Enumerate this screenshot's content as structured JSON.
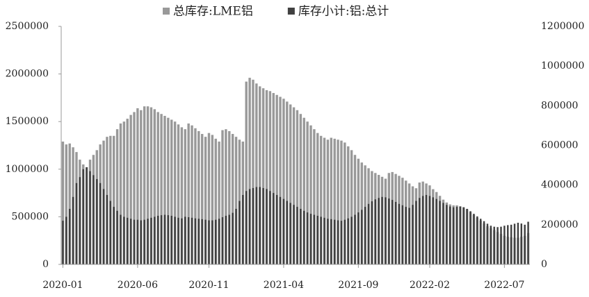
{
  "chart_data": {
    "type": "bar",
    "categories": [
      "2020-01",
      null,
      null,
      null,
      null,
      null,
      null,
      null,
      null,
      null,
      null,
      null,
      null,
      null,
      null,
      null,
      null,
      null,
      null,
      null,
      null,
      null,
      "2020-06",
      null,
      null,
      null,
      null,
      null,
      null,
      null,
      null,
      null,
      null,
      null,
      null,
      null,
      null,
      null,
      null,
      null,
      null,
      null,
      null,
      "2020-11",
      null,
      null,
      null,
      null,
      null,
      null,
      null,
      null,
      null,
      null,
      null,
      null,
      null,
      null,
      null,
      null,
      null,
      null,
      null,
      null,
      null,
      "2021-04",
      null,
      null,
      null,
      null,
      null,
      null,
      null,
      null,
      null,
      null,
      null,
      null,
      null,
      null,
      null,
      null,
      null,
      null,
      null,
      null,
      null,
      "2021-09",
      null,
      null,
      null,
      null,
      null,
      null,
      null,
      null,
      null,
      null,
      null,
      null,
      null,
      null,
      null,
      null,
      null,
      null,
      null,
      null,
      "2022-02",
      null,
      null,
      null,
      null,
      null,
      null,
      null,
      null,
      null,
      null,
      null,
      null,
      null,
      null,
      null,
      null,
      null,
      null,
      null,
      null,
      null,
      "2022-07",
      null,
      null,
      null,
      null,
      null,
      null,
      null
    ],
    "series": [
      {
        "name": "总库存:LME铝",
        "color": "#999999",
        "values": [
          1290000,
          1260000,
          1270000,
          1230000,
          1180000,
          1100000,
          1050000,
          1020000,
          1100000,
          1150000,
          1200000,
          1260000,
          1300000,
          1340000,
          1350000,
          1350000,
          1420000,
          1480000,
          1500000,
          1530000,
          1570000,
          1600000,
          1640000,
          1620000,
          1660000,
          1660000,
          1650000,
          1630000,
          1600000,
          1580000,
          1560000,
          1540000,
          1520000,
          1500000,
          1470000,
          1440000,
          1420000,
          1480000,
          1460000,
          1430000,
          1400000,
          1370000,
          1340000,
          1380000,
          1360000,
          1320000,
          1290000,
          1410000,
          1420000,
          1400000,
          1370000,
          1340000,
          1310000,
          1290000,
          1920000,
          1960000,
          1940000,
          1900000,
          1870000,
          1850000,
          1830000,
          1820000,
          1800000,
          1780000,
          1760000,
          1740000,
          1710000,
          1680000,
          1650000,
          1620000,
          1580000,
          1540000,
          1500000,
          1460000,
          1420000,
          1380000,
          1350000,
          1330000,
          1310000,
          1330000,
          1320000,
          1310000,
          1300000,
          1280000,
          1240000,
          1200000,
          1150000,
          1110000,
          1070000,
          1040000,
          1010000,
          980000,
          960000,
          940000,
          920000,
          900000,
          960000,
          970000,
          950000,
          930000,
          910000,
          880000,
          850000,
          820000,
          800000,
          860000,
          870000,
          850000,
          830000,
          790000,
          760000,
          720000,
          680000,
          650000,
          630000,
          620000,
          620000,
          610000,
          600000,
          580000,
          550000,
          520000,
          490000,
          460000,
          430000,
          400000,
          380000,
          360000,
          340000,
          320000,
          300000,
          290000,
          285000,
          280000,
          280000,
          290000,
          300000,
          330000
        ]
      },
      {
        "name": "库存小计:铝:总计",
        "color": "#404040",
        "axis": "y2",
        "values": [
          220000,
          240000,
          280000,
          340000,
          410000,
          440000,
          480000,
          490000,
          470000,
          450000,
          430000,
          410000,
          380000,
          350000,
          320000,
          290000,
          270000,
          250000,
          240000,
          235000,
          230000,
          225000,
          225000,
          222000,
          225000,
          230000,
          235000,
          240000,
          245000,
          248000,
          250000,
          248000,
          245000,
          240000,
          235000,
          232000,
          240000,
          238000,
          235000,
          232000,
          230000,
          228000,
          225000,
          222000,
          222000,
          225000,
          230000,
          238000,
          245000,
          250000,
          260000,
          280000,
          320000,
          350000,
          370000,
          380000,
          385000,
          390000,
          390000,
          385000,
          380000,
          370000,
          360000,
          350000,
          340000,
          330000,
          320000,
          310000,
          300000,
          290000,
          280000,
          270000,
          262000,
          255000,
          250000,
          245000,
          240000,
          235000,
          230000,
          228000,
          225000,
          222000,
          220000,
          225000,
          232000,
          240000,
          250000,
          262000,
          275000,
          290000,
          305000,
          318000,
          328000,
          335000,
          340000,
          338000,
          332000,
          325000,
          315000,
          305000,
          298000,
          290000,
          285000,
          300000,
          320000,
          335000,
          345000,
          350000,
          345000,
          338000,
          330000,
          320000,
          310000,
          300000,
          292000,
          288000,
          290000,
          292000,
          288000,
          280000,
          268000,
          255000,
          242000,
          230000,
          218000,
          205000,
          195000,
          190000,
          188000,
          190000,
          195000,
          198000,
          200000,
          205000,
          210000,
          206000,
          200000,
          215000
        ]
      }
    ],
    "ylim": [
      0,
      2500000
    ],
    "yticks": [
      0,
      500000,
      1000000,
      1500000,
      2000000,
      2500000
    ],
    "y2lim": [
      0,
      1200000
    ],
    "y2ticks": [
      0,
      200000,
      400000,
      600000,
      800000,
      1000000,
      1200000
    ],
    "legend": "top"
  }
}
